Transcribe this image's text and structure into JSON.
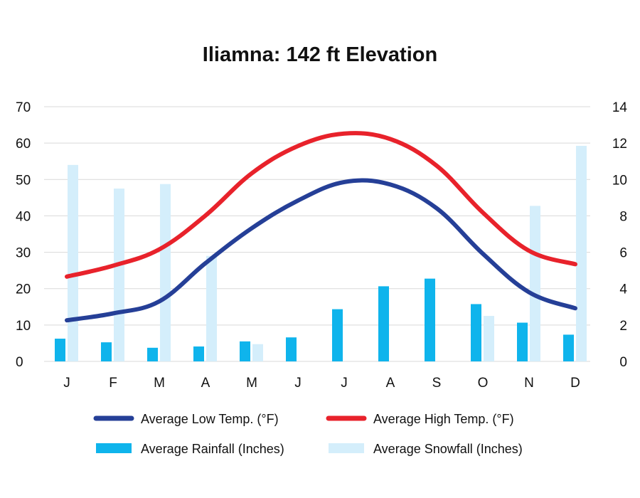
{
  "chart_data": {
    "type": "bar+line",
    "title": "Iliamna: 142 ft Elevation",
    "categories": [
      "J",
      "F",
      "M",
      "A",
      "M",
      "J",
      "J",
      "A",
      "S",
      "O",
      "N",
      "D"
    ],
    "left_axis": {
      "ylim": [
        0,
        70
      ],
      "ticks": [
        "0",
        "10",
        "20",
        "30",
        "40",
        "50",
        "60",
        "70"
      ]
    },
    "right_axis": {
      "ylim": [
        0,
        14
      ],
      "ticks": [
        "0",
        "2",
        "4",
        "6",
        "8",
        "10",
        "12",
        "14"
      ]
    },
    "grid": true,
    "series": [
      {
        "name": "Average Low Temp. (°F)",
        "kind": "line",
        "axis": "left",
        "color": "#253f97",
        "values": [
          11.3,
          13.2,
          16.5,
          27.0,
          36.6,
          44.2,
          49.3,
          48.6,
          42.1,
          29.6,
          19.0,
          14.6
        ]
      },
      {
        "name": "Average High Temp. (°F)",
        "kind": "line",
        "axis": "left",
        "color": "#e8222b",
        "values": [
          23.3,
          26.3,
          30.8,
          40.1,
          51.7,
          59.2,
          62.6,
          61.1,
          53.8,
          40.9,
          30.4,
          26.7
        ]
      },
      {
        "name": "Average Rainfall (Inches)",
        "kind": "bar",
        "axis": "right",
        "color": "#0fb4ec",
        "values": [
          1.25,
          1.05,
          0.75,
          0.82,
          1.1,
          1.32,
          2.87,
          4.13,
          4.55,
          3.15,
          2.13,
          1.47
        ]
      },
      {
        "name": "Average Snowfall (Inches)",
        "kind": "bar",
        "axis": "right",
        "color": "#d4eefb",
        "values": [
          10.8,
          9.5,
          9.75,
          5.8,
          0.95,
          0,
          0,
          0,
          0,
          2.5,
          8.55,
          11.85
        ]
      }
    ],
    "legend": {
      "placement": "bottom",
      "order": [
        "Average Low Temp. (°F)",
        "Average High Temp. (°F)",
        "Average Rainfall (Inches)",
        "Average Snowfall (Inches)"
      ]
    }
  }
}
